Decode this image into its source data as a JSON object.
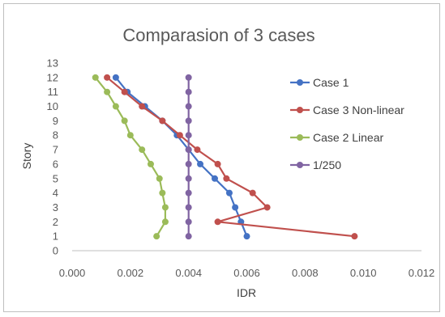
{
  "chart_data": {
    "type": "line",
    "title": "Comparasion of 3 cases",
    "xlabel": "IDR",
    "ylabel": "Story",
    "xlim": [
      0.0,
      0.012
    ],
    "ylim": [
      0,
      13
    ],
    "xticks": [
      "0.000",
      "0.002",
      "0.004",
      "0.006",
      "0.008",
      "0.010",
      "0.012"
    ],
    "yticks": [
      "0",
      "1",
      "2",
      "3",
      "4",
      "5",
      "6",
      "7",
      "8",
      "9",
      "10",
      "11",
      "12",
      "13"
    ],
    "grid": false,
    "legend_position": "right",
    "series": [
      {
        "name": "Case 1",
        "color": "#4472c4",
        "points": [
          [
            0.006,
            1
          ],
          [
            0.0058,
            2
          ],
          [
            0.0056,
            3
          ],
          [
            0.0054,
            4
          ],
          [
            0.0049,
            5
          ],
          [
            0.0044,
            6
          ],
          [
            0.004,
            7
          ],
          [
            0.0036,
            8
          ],
          [
            0.0031,
            9
          ],
          [
            0.0025,
            10
          ],
          [
            0.0019,
            11
          ],
          [
            0.0015,
            12
          ]
        ]
      },
      {
        "name": "Case 3 Non-linear",
        "color": "#c0504d",
        "points": [
          [
            0.0097,
            1
          ],
          [
            0.005,
            2
          ],
          [
            0.0067,
            3
          ],
          [
            0.0062,
            4
          ],
          [
            0.0053,
            5
          ],
          [
            0.005,
            6
          ],
          [
            0.0043,
            7
          ],
          [
            0.0037,
            8
          ],
          [
            0.0031,
            9
          ],
          [
            0.0024,
            10
          ],
          [
            0.0018,
            11
          ],
          [
            0.0012,
            12
          ]
        ]
      },
      {
        "name": "Case 2 Linear",
        "color": "#9bbb59",
        "points": [
          [
            0.0029,
            1
          ],
          [
            0.0032,
            2
          ],
          [
            0.0032,
            3
          ],
          [
            0.0031,
            4
          ],
          [
            0.003,
            5
          ],
          [
            0.0027,
            6
          ],
          [
            0.0024,
            7
          ],
          [
            0.002,
            8
          ],
          [
            0.0018,
            9
          ],
          [
            0.0015,
            10
          ],
          [
            0.0012,
            11
          ],
          [
            0.0008,
            12
          ]
        ]
      },
      {
        "name": "1/250",
        "color": "#8064a2",
        "points": [
          [
            0.004,
            1
          ],
          [
            0.004,
            2
          ],
          [
            0.004,
            3
          ],
          [
            0.004,
            4
          ],
          [
            0.004,
            5
          ],
          [
            0.004,
            6
          ],
          [
            0.004,
            7
          ],
          [
            0.004,
            8
          ],
          [
            0.004,
            9
          ],
          [
            0.004,
            10
          ],
          [
            0.004,
            11
          ],
          [
            0.004,
            12
          ]
        ]
      }
    ]
  }
}
